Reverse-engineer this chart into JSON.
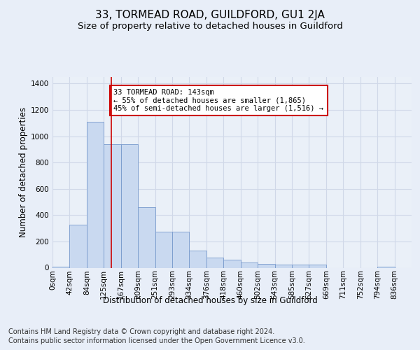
{
  "title": "33, TORMEAD ROAD, GUILDFORD, GU1 2JA",
  "subtitle": "Size of property relative to detached houses in Guildford",
  "xlabel": "Distribution of detached houses by size in Guildford",
  "ylabel": "Number of detached properties",
  "footer_line1": "Contains HM Land Registry data © Crown copyright and database right 2024.",
  "footer_line2": "Contains public sector information licensed under the Open Government Licence v3.0.",
  "bar_labels": [
    "0sqm",
    "42sqm",
    "84sqm",
    "125sqm",
    "167sqm",
    "209sqm",
    "251sqm",
    "293sqm",
    "334sqm",
    "376sqm",
    "418sqm",
    "460sqm",
    "502sqm",
    "543sqm",
    "585sqm",
    "627sqm",
    "669sqm",
    "711sqm",
    "752sqm",
    "794sqm",
    "836sqm"
  ],
  "bar_values": [
    8,
    325,
    1110,
    940,
    940,
    460,
    275,
    275,
    130,
    75,
    60,
    40,
    30,
    25,
    25,
    25,
    0,
    0,
    0,
    10,
    0
  ],
  "bar_color": "#c9d9f0",
  "bar_edge_color": "#7799cc",
  "annotation_text": "33 TORMEAD ROAD: 143sqm\n← 55% of detached houses are smaller (1,865)\n45% of semi-detached houses are larger (1,516) →",
  "annotation_box_color": "#ffffff",
  "annotation_box_edge": "#cc0000",
  "vline_x": 3,
  "vline_color": "#cc0000",
  "ylim": [
    0,
    1450
  ],
  "yticks": [
    0,
    200,
    400,
    600,
    800,
    1000,
    1200,
    1400
  ],
  "n_bins": 21,
  "bin_width": 1,
  "bg_color": "#e8eef8",
  "plot_bg_color": "#eaf0f8",
  "grid_color": "#d0d8e8",
  "title_fontsize": 11,
  "subtitle_fontsize": 9.5,
  "axis_label_fontsize": 8.5,
  "tick_fontsize": 7.5,
  "footer_fontsize": 7
}
